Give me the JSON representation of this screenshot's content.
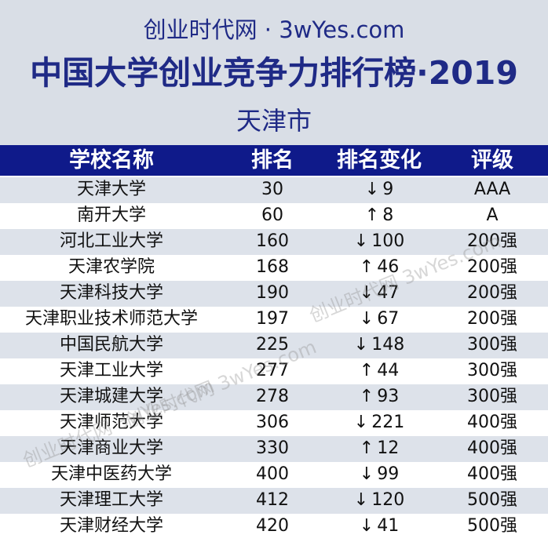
{
  "header": {
    "site": "创业时代网 · 3wYes.com",
    "title": "中国大学创业竞争力排行榜·2019",
    "city": "天津市"
  },
  "table": {
    "columns": [
      "学校名称",
      "排名",
      "排名变化",
      "评级"
    ],
    "rows": [
      {
        "name": "天津大学",
        "rank": "30",
        "arrow": "↓",
        "change": "9",
        "grade": "AAA"
      },
      {
        "name": "南开大学",
        "rank": "60",
        "arrow": "↑",
        "change": "8",
        "grade": "A"
      },
      {
        "name": "河北工业大学",
        "rank": "160",
        "arrow": "↓",
        "change": "100",
        "grade": "200强"
      },
      {
        "name": "天津农学院",
        "rank": "168",
        "arrow": "↑",
        "change": "46",
        "grade": "200强"
      },
      {
        "name": "天津科技大学",
        "rank": "190",
        "arrow": "↓",
        "change": "47",
        "grade": "200强"
      },
      {
        "name": "天津职业技术师范大学",
        "rank": "197",
        "arrow": "↓",
        "change": "67",
        "grade": "200强"
      },
      {
        "name": "中国民航大学",
        "rank": "225",
        "arrow": "↓",
        "change": "148",
        "grade": "300强"
      },
      {
        "name": "天津工业大学",
        "rank": "277",
        "arrow": "↑",
        "change": "44",
        "grade": "300强"
      },
      {
        "name": "天津城建大学",
        "rank": "278",
        "arrow": "↑",
        "change": "93",
        "grade": "300强"
      },
      {
        "name": "天津师范大学",
        "rank": "306",
        "arrow": "↓",
        "change": "221",
        "grade": "400强"
      },
      {
        "name": "天津商业大学",
        "rank": "330",
        "arrow": "↑",
        "change": "12",
        "grade": "400强"
      },
      {
        "name": "天津中医药大学",
        "rank": "400",
        "arrow": "↓",
        "change": "99",
        "grade": "400强"
      },
      {
        "name": "天津理工大学",
        "rank": "412",
        "arrow": "↓",
        "change": "120",
        "grade": "500强"
      },
      {
        "name": "天津财经大学",
        "rank": "420",
        "arrow": "↓",
        "change": "41",
        "grade": "500强"
      }
    ]
  },
  "watermarks": [
    "创业时代网 3wYes.com",
    "创业时代网 3wYes.com",
    "创业时代网 3wYes.com"
  ]
}
